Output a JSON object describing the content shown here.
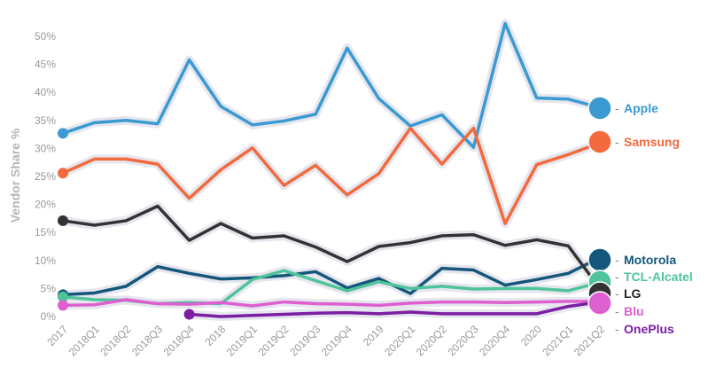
{
  "chart_data": {
    "type": "line",
    "ylabel": "Vendor Share %",
    "xlabel": "",
    "ylim": [
      -1.5,
      53
    ],
    "yticks": [
      "0%",
      "5%",
      "10%",
      "15%",
      "20%",
      "25%",
      "30%",
      "35%",
      "40%",
      "45%",
      "50%"
    ],
    "yticks_values": [
      0,
      5,
      10,
      15,
      20,
      25,
      30,
      35,
      40,
      45,
      50
    ],
    "grid": false,
    "legend_position": "right",
    "categories": [
      "2017",
      "2018Q1",
      "2018Q2",
      "2018Q3",
      "2018Q4",
      "2018",
      "2019Q1",
      "2019Q2",
      "2019Q3",
      "2019Q4",
      "2019",
      "2020Q1",
      "2020Q2",
      "2020Q3",
      "2020Q4",
      "2020",
      "2021Q1",
      "2021Q2"
    ],
    "series": [
      {
        "name": "Apple",
        "color": "#3a9ad1",
        "start": 0,
        "values": [
          32.7,
          34.6,
          35.0,
          34.4,
          45.8,
          37.5,
          34.2,
          34.9,
          36.1,
          47.9,
          38.9,
          34.0,
          36.0,
          30.2,
          52.3,
          39.0,
          38.8,
          37.3
        ]
      },
      {
        "name": "Samsung",
        "color": "#f26a3d",
        "start": 0,
        "values": [
          25.6,
          28.1,
          28.1,
          27.2,
          21.1,
          26.2,
          30.1,
          23.4,
          27.0,
          21.7,
          25.5,
          33.6,
          27.2,
          33.6,
          16.6,
          27.1,
          28.9,
          31.0
        ]
      },
      {
        "name": "Motorola",
        "color": "#14577b",
        "start": 0,
        "values": [
          3.9,
          4.2,
          5.4,
          8.9,
          7.7,
          6.7,
          6.9,
          7.3,
          8.0,
          5.1,
          6.8,
          4.1,
          8.6,
          8.3,
          5.6,
          6.6,
          7.7,
          10.5
        ]
      },
      {
        "name": "TCL-Alcatel",
        "color": "#4fc49a",
        "start": 0,
        "values": [
          3.5,
          3.0,
          2.9,
          2.3,
          2.5,
          2.3,
          6.6,
          8.2,
          6.4,
          4.6,
          6.2,
          5.0,
          5.4,
          4.9,
          5.0,
          5.0,
          4.6,
          6.1
        ]
      },
      {
        "name": "LG",
        "color": "#333333",
        "start": 0,
        "values": [
          17.1,
          16.3,
          17.1,
          19.7,
          13.6,
          16.6,
          14.0,
          14.4,
          12.4,
          9.8,
          12.5,
          13.2,
          14.4,
          14.6,
          12.7,
          13.7,
          12.6,
          5.0
        ]
      },
      {
        "name": "Blu",
        "color": "#dd5fd0",
        "start": 0,
        "values": [
          2.0,
          2.1,
          3.0,
          2.3,
          2.2,
          2.5,
          1.9,
          2.6,
          2.3,
          2.2,
          2.0,
          2.4,
          2.6,
          2.6,
          2.5,
          2.6,
          2.7,
          2.7
        ]
      },
      {
        "name": "OnePlus",
        "color": "#7b1fa2",
        "start": 4,
        "values": [
          null,
          null,
          null,
          null,
          0.4,
          0.0,
          0.2,
          0.4,
          0.6,
          0.7,
          0.5,
          0.8,
          0.5,
          0.5,
          0.5,
          0.5,
          1.8,
          2.6
        ]
      }
    ]
  }
}
